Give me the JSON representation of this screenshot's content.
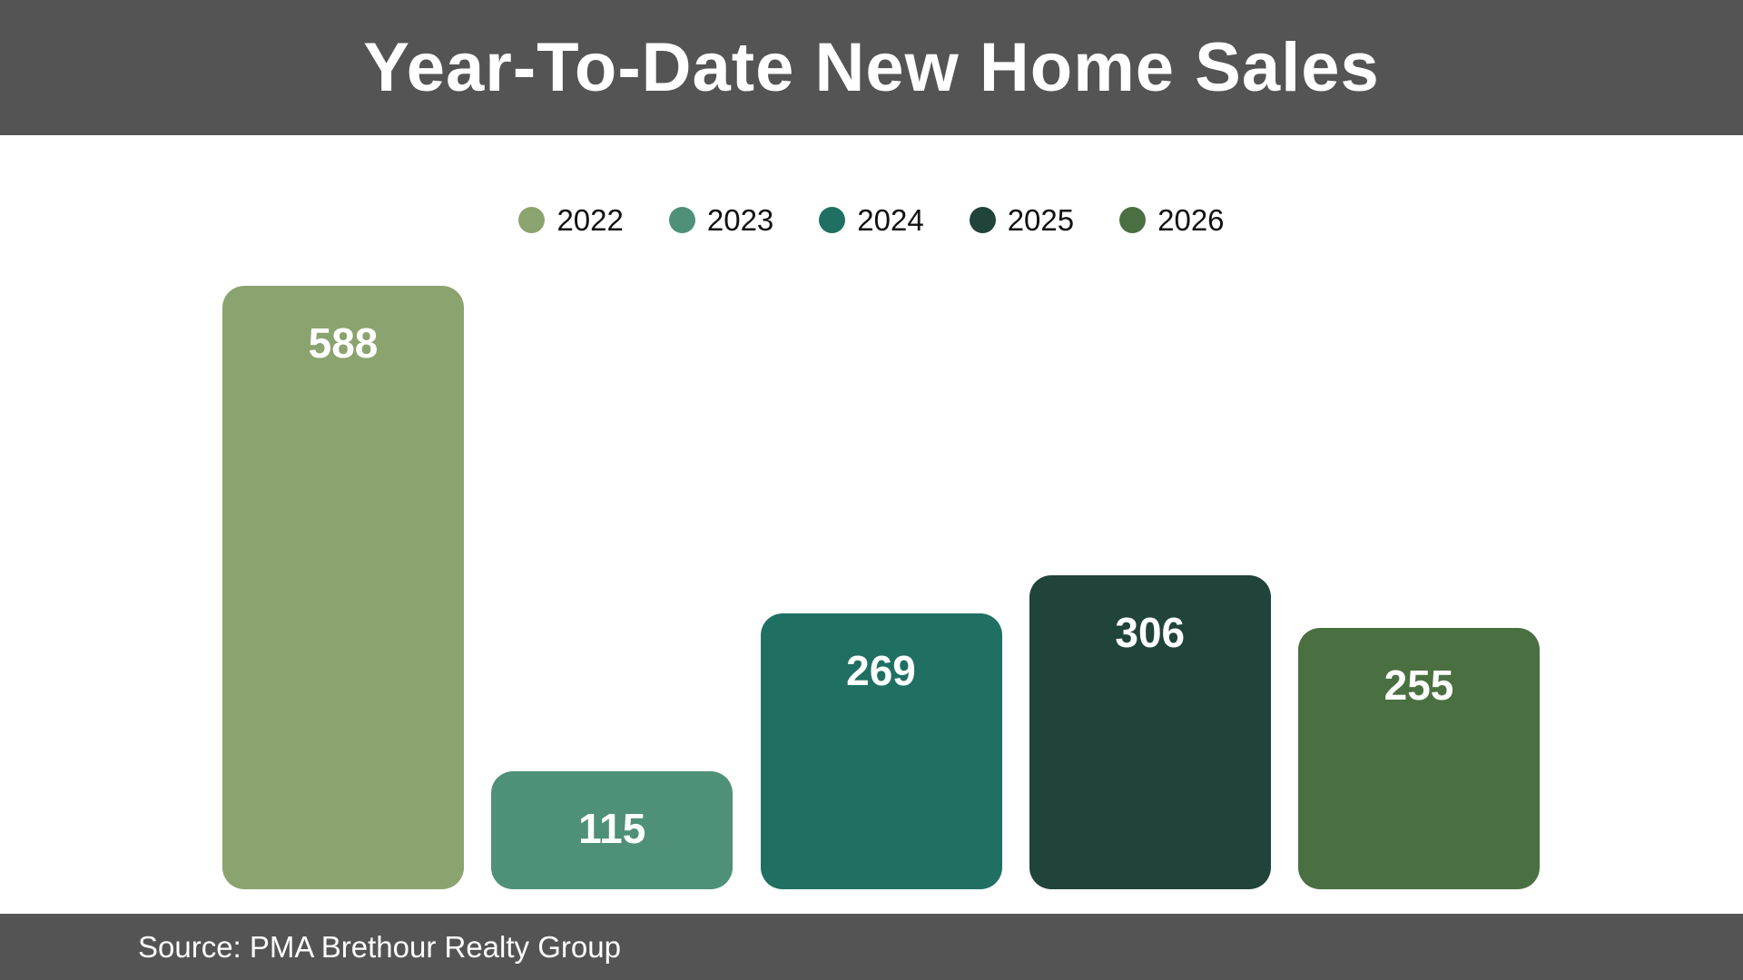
{
  "title": "Year-To-Date New Home Sales",
  "source": "Source: PMA Brethour Realty Group",
  "colors": {
    "banner_bg": "#545454",
    "background": "#ffffff",
    "title_text": "#ffffff",
    "legend_text": "#111111",
    "bar_label_text": "#ffffff"
  },
  "chart_data": {
    "type": "bar",
    "title": "Year-To-Date New Home Sales",
    "categories": [
      "2022",
      "2023",
      "2024",
      "2025",
      "2026"
    ],
    "values": [
      588,
      115,
      269,
      306,
      255
    ],
    "series_colors": [
      "#8BA36F",
      "#4E9178",
      "#1F7063",
      "#20433A",
      "#4A7041"
    ],
    "data_labels": "inside-top",
    "legend_position": "top",
    "legend_marker": "circle",
    "xlabel": "",
    "ylabel": "",
    "ylim": [
      0,
      588
    ],
    "grid": false,
    "axes_visible": false
  }
}
